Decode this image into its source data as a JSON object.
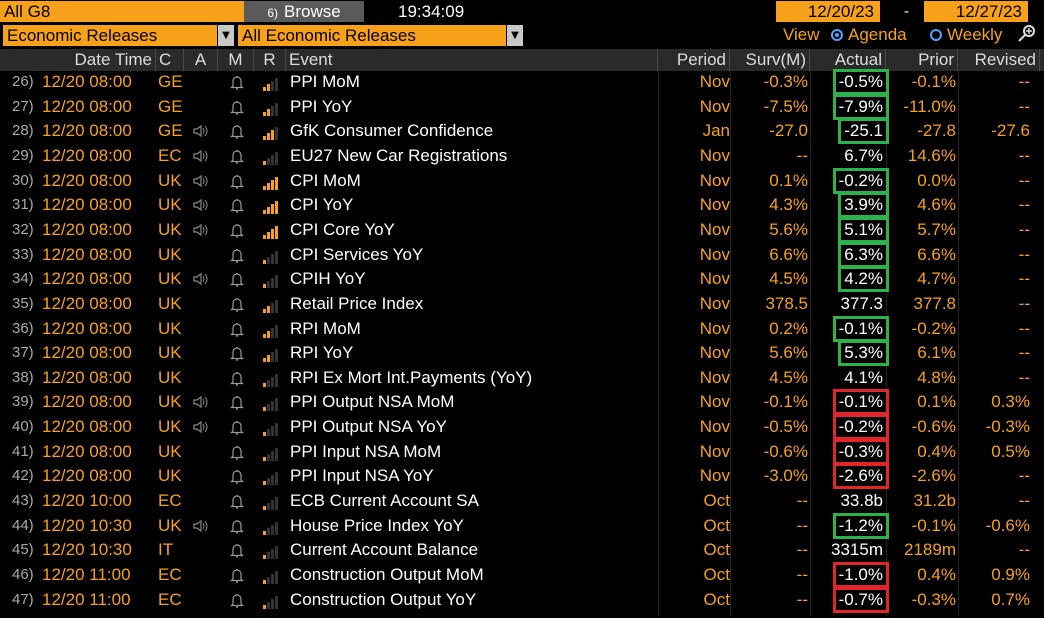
{
  "topbar": {
    "group_field": "All G8",
    "browse_label": "Browse",
    "browse_icon": "6)",
    "clock": "19:34:09",
    "date_from": "12/20/23",
    "date_sep": "-",
    "date_to": "12/27/23"
  },
  "filters": {
    "category": "Economic Releases",
    "subcategory": "All Economic Releases",
    "view_label": "View",
    "agenda_label": "Agenda",
    "weekly_label": "Weekly"
  },
  "columns": [
    "Date Time",
    "C",
    "A",
    "M",
    "R",
    "Event",
    "Period",
    "Surv(M)",
    "Actual",
    "Prior",
    "Revised"
  ],
  "colors": {
    "accent": "#f7a11a",
    "green_box": "#2bb34a",
    "red_box": "#e0262b"
  },
  "rows": [
    {
      "n": "26)",
      "dt": "12/20 08:00",
      "c": "GE",
      "a": false,
      "r": 2,
      "event": "PPI MoM",
      "period": "Nov",
      "surv": "-0.3%",
      "actual": "-0.5%",
      "prior": "-0.1%",
      "revised": "--",
      "box": "green"
    },
    {
      "n": "27)",
      "dt": "12/20 08:00",
      "c": "GE",
      "a": false,
      "r": 2,
      "event": "PPI YoY",
      "period": "Nov",
      "surv": "-7.5%",
      "actual": "-7.9%",
      "prior": "-11.0%",
      "revised": "--",
      "box": "green"
    },
    {
      "n": "28)",
      "dt": "12/20 08:00",
      "c": "GE",
      "a": true,
      "r": 3,
      "event": "GfK Consumer Confidence",
      "period": "Jan",
      "surv": "-27.0",
      "actual": "-25.1",
      "prior": "-27.8",
      "revised": "-27.6",
      "box": "green"
    },
    {
      "n": "29)",
      "dt": "12/20 08:00",
      "c": "EC",
      "a": true,
      "r": 1,
      "event": "EU27 New Car Registrations",
      "period": "Nov",
      "surv": "--",
      "actual": "6.7%",
      "prior": "14.6%",
      "revised": "--",
      "box": ""
    },
    {
      "n": "30)",
      "dt": "12/20 08:00",
      "c": "UK",
      "a": true,
      "r": 4,
      "event": "CPI MoM",
      "period": "Nov",
      "surv": "0.1%",
      "actual": "-0.2%",
      "prior": "0.0%",
      "revised": "--",
      "box": "green"
    },
    {
      "n": "31)",
      "dt": "12/20 08:00",
      "c": "UK",
      "a": true,
      "r": 4,
      "event": "CPI YoY",
      "period": "Nov",
      "surv": "4.3%",
      "actual": "3.9%",
      "prior": "4.6%",
      "revised": "--",
      "box": "green"
    },
    {
      "n": "32)",
      "dt": "12/20 08:00",
      "c": "UK",
      "a": true,
      "r": 4,
      "event": "CPI Core YoY",
      "period": "Nov",
      "surv": "5.6%",
      "actual": "5.1%",
      "prior": "5.7%",
      "revised": "--",
      "box": "green"
    },
    {
      "n": "33)",
      "dt": "12/20 08:00",
      "c": "UK",
      "a": false,
      "r": 1,
      "event": "CPI Services YoY",
      "period": "Nov",
      "surv": "6.6%",
      "actual": "6.3%",
      "prior": "6.6%",
      "revised": "--",
      "box": "green"
    },
    {
      "n": "34)",
      "dt": "12/20 08:00",
      "c": "UK",
      "a": true,
      "r": 1,
      "event": "CPIH YoY",
      "period": "Nov",
      "surv": "4.5%",
      "actual": "4.2%",
      "prior": "4.7%",
      "revised": "--",
      "box": "green"
    },
    {
      "n": "35)",
      "dt": "12/20 08:00",
      "c": "UK",
      "a": false,
      "r": 2,
      "event": "Retail Price Index",
      "period": "Nov",
      "surv": "378.5",
      "actual": "377.3",
      "prior": "377.8",
      "revised": "--",
      "box": ""
    },
    {
      "n": "36)",
      "dt": "12/20 08:00",
      "c": "UK",
      "a": false,
      "r": 2,
      "event": "RPI MoM",
      "period": "Nov",
      "surv": "0.2%",
      "actual": "-0.1%",
      "prior": "-0.2%",
      "revised": "--",
      "box": "green"
    },
    {
      "n": "37)",
      "dt": "12/20 08:00",
      "c": "UK",
      "a": false,
      "r": 2,
      "event": "RPI YoY",
      "period": "Nov",
      "surv": "5.6%",
      "actual": "5.3%",
      "prior": "6.1%",
      "revised": "--",
      "box": "green"
    },
    {
      "n": "38)",
      "dt": "12/20 08:00",
      "c": "UK",
      "a": false,
      "r": 1,
      "event": "RPI Ex Mort Int.Payments (YoY)",
      "period": "Nov",
      "surv": "4.5%",
      "actual": "4.1%",
      "prior": "4.8%",
      "revised": "--",
      "box": ""
    },
    {
      "n": "39)",
      "dt": "12/20 08:00",
      "c": "UK",
      "a": true,
      "r": 1,
      "event": "PPI Output NSA MoM",
      "period": "Nov",
      "surv": "-0.1%",
      "actual": "-0.1%",
      "prior": "0.1%",
      "revised": "0.3%",
      "box": "red"
    },
    {
      "n": "40)",
      "dt": "12/20 08:00",
      "c": "UK",
      "a": true,
      "r": 1,
      "event": "PPI Output NSA YoY",
      "period": "Nov",
      "surv": "-0.5%",
      "actual": "-0.2%",
      "prior": "-0.6%",
      "revised": "-0.3%",
      "box": "red"
    },
    {
      "n": "41)",
      "dt": "12/20 08:00",
      "c": "UK",
      "a": false,
      "r": 1,
      "event": "PPI Input NSA MoM",
      "period": "Nov",
      "surv": "-0.6%",
      "actual": "-0.3%",
      "prior": "0.4%",
      "revised": "0.5%",
      "box": "red"
    },
    {
      "n": "42)",
      "dt": "12/20 08:00",
      "c": "UK",
      "a": false,
      "r": 1,
      "event": "PPI Input NSA YoY",
      "period": "Nov",
      "surv": "-3.0%",
      "actual": "-2.6%",
      "prior": "-2.6%",
      "revised": "--",
      "box": "red"
    },
    {
      "n": "43)",
      "dt": "12/20 10:00",
      "c": "EC",
      "a": false,
      "r": 1,
      "event": "ECB Current Account SA",
      "period": "Oct",
      "surv": "--",
      "actual": "33.8b",
      "prior": "31.2b",
      "revised": "--",
      "box": ""
    },
    {
      "n": "44)",
      "dt": "12/20 10:30",
      "c": "UK",
      "a": true,
      "r": 1,
      "event": "House Price Index YoY",
      "period": "Oct",
      "surv": "--",
      "actual": "-1.2%",
      "prior": "-0.1%",
      "revised": "-0.6%",
      "box": "green"
    },
    {
      "n": "45)",
      "dt": "12/20 10:30",
      "c": "IT",
      "a": false,
      "r": 1,
      "event": "Current Account Balance",
      "period": "Oct",
      "surv": "--",
      "actual": "3315m",
      "prior": "2189m",
      "revised": "--",
      "box": ""
    },
    {
      "n": "46)",
      "dt": "12/20 11:00",
      "c": "EC",
      "a": false,
      "r": 1,
      "event": "Construction Output MoM",
      "period": "Oct",
      "surv": "--",
      "actual": "-1.0%",
      "prior": "0.4%",
      "revised": "0.9%",
      "box": "red"
    },
    {
      "n": "47)",
      "dt": "12/20 11:00",
      "c": "EC",
      "a": false,
      "r": 1,
      "event": "Construction Output YoY",
      "period": "Oct",
      "surv": "--",
      "actual": "-0.7%",
      "prior": "-0.3%",
      "revised": "0.7%",
      "box": "red"
    }
  ]
}
